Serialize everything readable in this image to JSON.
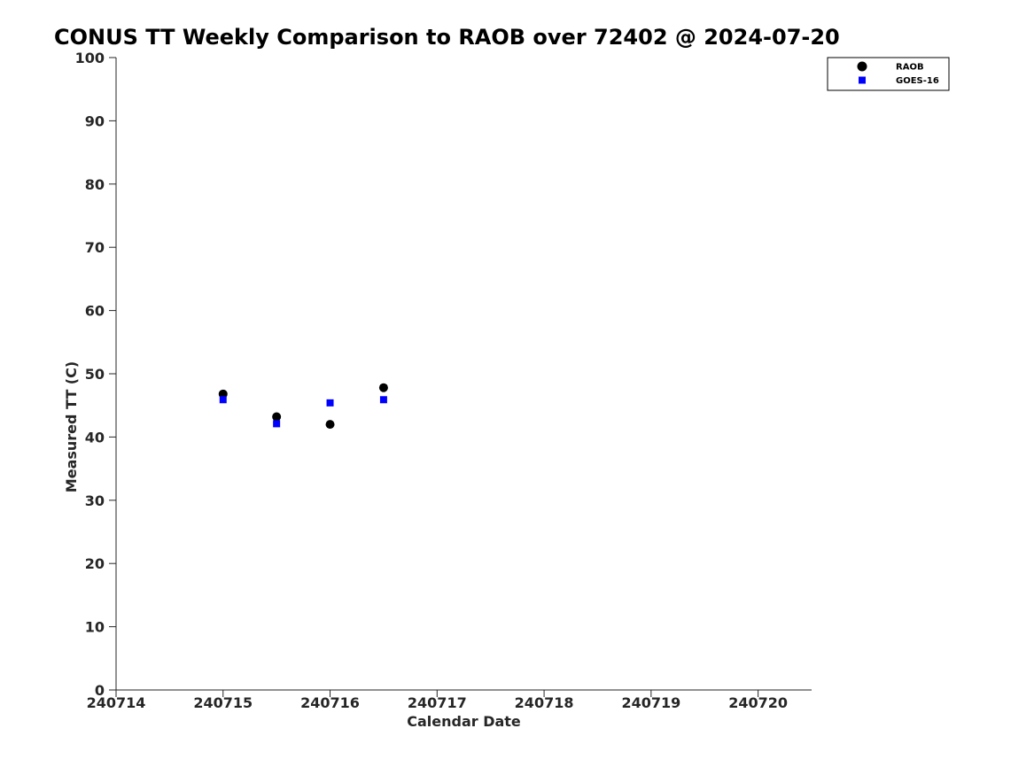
{
  "chart_data": {
    "type": "scatter",
    "title": "CONUS TT Weekly Comparison to RAOB over 72402 @ 2024-07-20",
    "xlabel": "Calendar Date",
    "ylabel": "Measured TT (C)",
    "xlim": [
      240714,
      240720.5
    ],
    "ylim": [
      0,
      100
    ],
    "x_ticks": [
      240714,
      240715,
      240716,
      240717,
      240718,
      240719,
      240720
    ],
    "x_tick_labels": [
      "240714",
      "240715",
      "240716",
      "240717",
      "240718",
      "240719",
      "240720"
    ],
    "y_ticks": [
      0,
      10,
      20,
      30,
      40,
      50,
      60,
      70,
      80,
      90,
      100
    ],
    "y_tick_labels": [
      "0",
      "10",
      "20",
      "30",
      "40",
      "50",
      "60",
      "70",
      "80",
      "90",
      "100"
    ],
    "grid": false,
    "legend_position": "top-right",
    "series": [
      {
        "name": "RAOB",
        "marker": "circle",
        "color": "#000000",
        "x": [
          240715,
          240715.5,
          240716,
          240716.5
        ],
        "y": [
          46.8,
          43.2,
          42.0,
          47.8
        ]
      },
      {
        "name": "GOES-16",
        "marker": "square",
        "color": "#0000ff",
        "x": [
          240715,
          240715.5,
          240716,
          240716.5
        ],
        "y": [
          45.9,
          42.1,
          45.4,
          45.9
        ]
      }
    ]
  }
}
